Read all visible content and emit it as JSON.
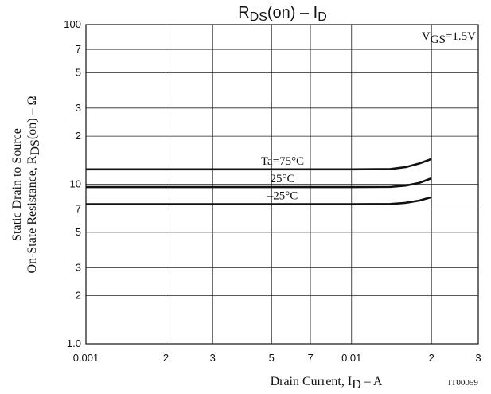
{
  "chart_data": {
    "type": "line",
    "title": [
      "R",
      "DS",
      "(on)  –  I",
      "D"
    ],
    "xlabel": [
      "Drain Current, I",
      "D",
      "  –  A"
    ],
    "ylabel": {
      "line1": "Static Drain to Source",
      "line2": [
        "On-State Resistance, R",
        "DS",
        "(on)  –  Ω"
      ]
    },
    "annotation": [
      "V",
      "GS",
      "=1.5V"
    ],
    "code": "IT00059",
    "log_x": true,
    "log_y": true,
    "grid": true,
    "xlim": [
      0.001,
      0.03
    ],
    "ylim": [
      1,
      100
    ],
    "xticks": [
      0.001,
      {
        "value": 0.002,
        "label": "2"
      },
      {
        "value": 0.003,
        "label": "3"
      },
      {
        "value": 0.005,
        "label": "5"
      },
      {
        "value": 0.007,
        "label": "7"
      },
      0.01,
      {
        "value": 0.02,
        "label": "2"
      },
      {
        "value": 0.03,
        "label": "3"
      }
    ],
    "yticks": [
      {
        "value": 1,
        "label": "1.0"
      },
      2,
      3,
      5,
      7,
      10,
      {
        "value": 20,
        "label": "2"
      },
      {
        "value": 30,
        "label": "3"
      },
      {
        "value": 50,
        "label": "5"
      },
      {
        "value": 70,
        "label": "7"
      },
      100
    ],
    "x": [
      0.001,
      0.005,
      0.01,
      0.014,
      0.016,
      0.018,
      0.02
    ],
    "series": [
      {
        "name": "Ta=75°C",
        "color": "#111111",
        "values": [
          12.4,
          12.4,
          12.4,
          12.45,
          12.8,
          13.5,
          14.4
        ]
      },
      {
        "name": "25°C",
        "color": "#111111",
        "values": [
          9.6,
          9.6,
          9.6,
          9.62,
          9.8,
          10.2,
          10.9
        ]
      },
      {
        "name": "–25°C",
        "color": "#111111",
        "values": [
          7.5,
          7.5,
          7.5,
          7.52,
          7.65,
          7.9,
          8.3
        ]
      }
    ]
  }
}
